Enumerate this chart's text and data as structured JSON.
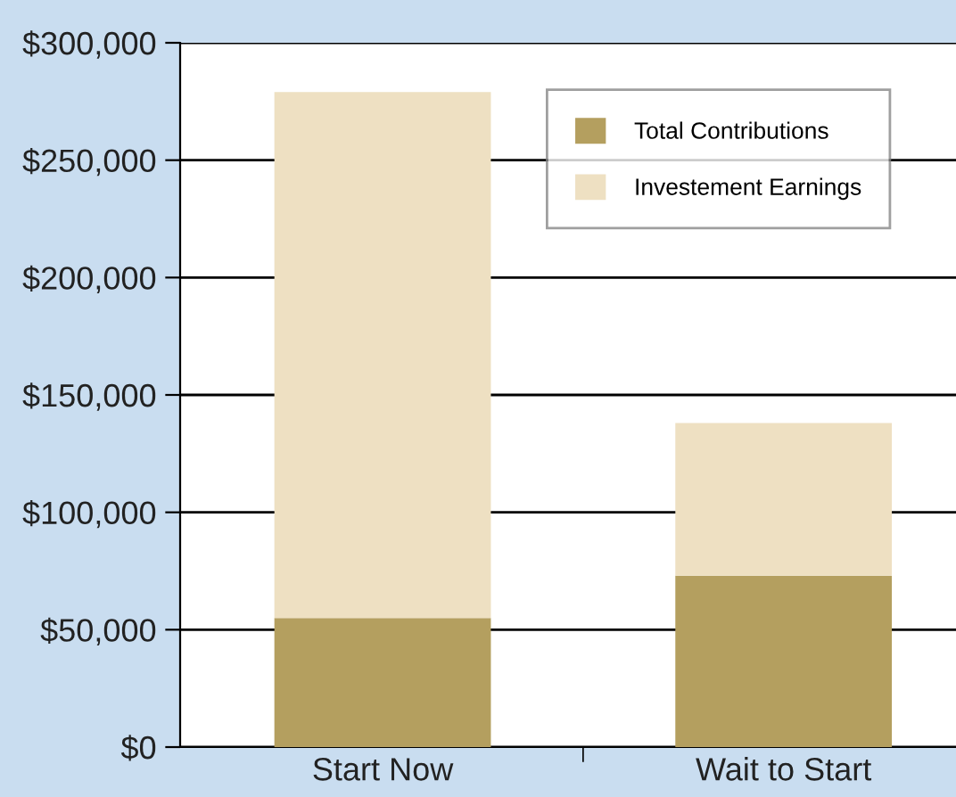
{
  "chart_data": {
    "type": "bar",
    "stacked": true,
    "categories": [
      "Start Now",
      "Wait to Start"
    ],
    "series": [
      {
        "name": "Total Contributions",
        "color": "#b49f5f",
        "values": [
          55000,
          73000
        ]
      },
      {
        "name": "Investement Earnings",
        "color": "#eee0c2",
        "values": [
          224000,
          65000
        ]
      }
    ],
    "ylim": [
      0,
      300000
    ],
    "yticks": [
      {
        "value": 0,
        "label": "$0"
      },
      {
        "value": 50000,
        "label": "$50,000"
      },
      {
        "value": 100000,
        "label": "$100,000"
      },
      {
        "value": 150000,
        "label": "$150,000"
      },
      {
        "value": 200000,
        "label": "$200,000"
      },
      {
        "value": 250000,
        "label": "$250,000"
      },
      {
        "value": 300000,
        "label": "$300,000"
      }
    ],
    "grid": "y",
    "legend": "top right"
  }
}
